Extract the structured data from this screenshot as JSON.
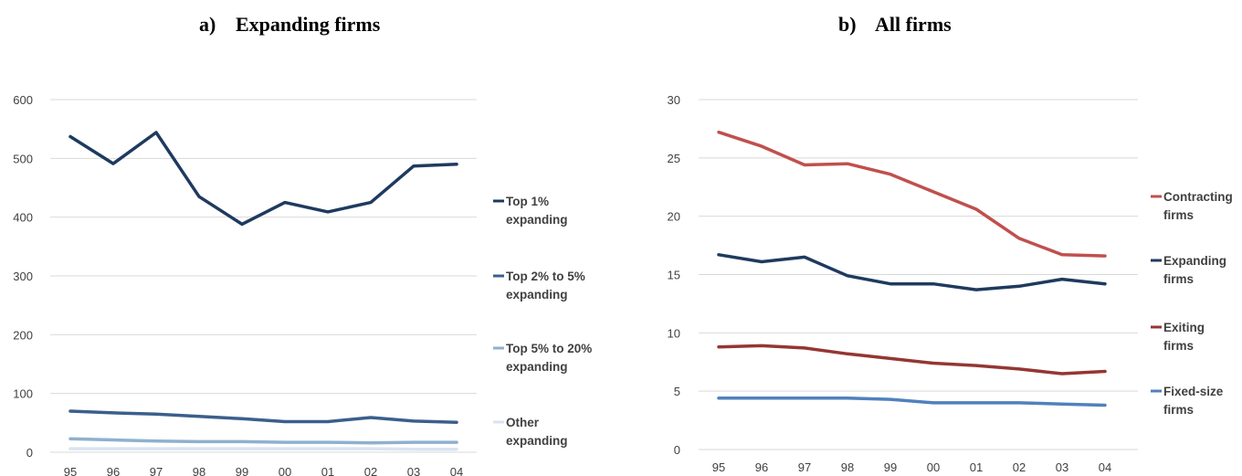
{
  "chart_data": [
    {
      "type": "line",
      "panel_label": "a)",
      "title": "Expanding firms",
      "xlabel": "",
      "ylabel": "",
      "categories": [
        "95",
        "96",
        "97",
        "98",
        "99",
        "00",
        "01",
        "02",
        "03",
        "04"
      ],
      "ylim": [
        0,
        600
      ],
      "yticks": [
        0,
        100,
        200,
        300,
        400,
        500,
        600
      ],
      "grid": true,
      "legend": "right",
      "series": [
        {
          "name": "Top 1% expanding",
          "color": "#1f3a5f",
          "values": [
            537,
            491,
            544,
            435,
            388,
            425,
            409,
            425,
            487,
            490
          ]
        },
        {
          "name": "Top 2% to 5% expanding",
          "color": "#3a5f8c",
          "values": [
            70,
            67,
            65,
            61,
            57,
            52,
            52,
            59,
            53,
            51
          ]
        },
        {
          "name": "Top 5% to 20% expanding",
          "color": "#8fb0d0",
          "values": [
            23,
            21,
            19,
            18,
            18,
            17,
            17,
            16,
            17,
            17
          ]
        },
        {
          "name": "Other expanding",
          "color": "#d9e4f0",
          "values": [
            6,
            6,
            6,
            6,
            6,
            6,
            6,
            6,
            5,
            5
          ]
        }
      ],
      "legend_lines": [
        [
          "Top 1%",
          "expanding"
        ],
        [
          "Top 2% to 5%",
          "expanding"
        ],
        [
          "Top 5% to 20%",
          "expanding"
        ],
        [
          "Other",
          "expanding"
        ]
      ]
    },
    {
      "type": "line",
      "panel_label": "b)",
      "title": "All firms",
      "xlabel": "",
      "ylabel": "",
      "categories": [
        "95",
        "96",
        "97",
        "98",
        "99",
        "00",
        "01",
        "02",
        "03",
        "04"
      ],
      "ylim": [
        0,
        30
      ],
      "yticks": [
        0,
        5,
        10,
        15,
        20,
        25,
        30
      ],
      "grid": true,
      "legend": "right",
      "series": [
        {
          "name": "Contracting firms",
          "color": "#c0504d",
          "values": [
            27.2,
            26.0,
            24.4,
            24.5,
            23.6,
            22.1,
            20.6,
            18.1,
            16.7,
            16.6
          ]
        },
        {
          "name": "Expanding firms",
          "color": "#1f3a5f",
          "values": [
            16.7,
            16.1,
            16.5,
            14.9,
            14.2,
            14.2,
            13.7,
            14.0,
            14.6,
            14.2
          ]
        },
        {
          "name": "Exiting firms",
          "color": "#943634",
          "values": [
            8.8,
            8.9,
            8.7,
            8.2,
            7.8,
            7.4,
            7.2,
            6.9,
            6.5,
            6.7
          ]
        },
        {
          "name": "Fixed-size firms",
          "color": "#4f81bd",
          "values": [
            4.4,
            4.4,
            4.4,
            4.4,
            4.3,
            4.0,
            4.0,
            4.0,
            3.9,
            3.8
          ]
        }
      ],
      "legend_lines": [
        [
          "Contracting",
          "firms"
        ],
        [
          "Expanding",
          "firms"
        ],
        [
          "Exiting",
          "firms"
        ],
        [
          "Fixed-size",
          "firms"
        ]
      ]
    }
  ]
}
